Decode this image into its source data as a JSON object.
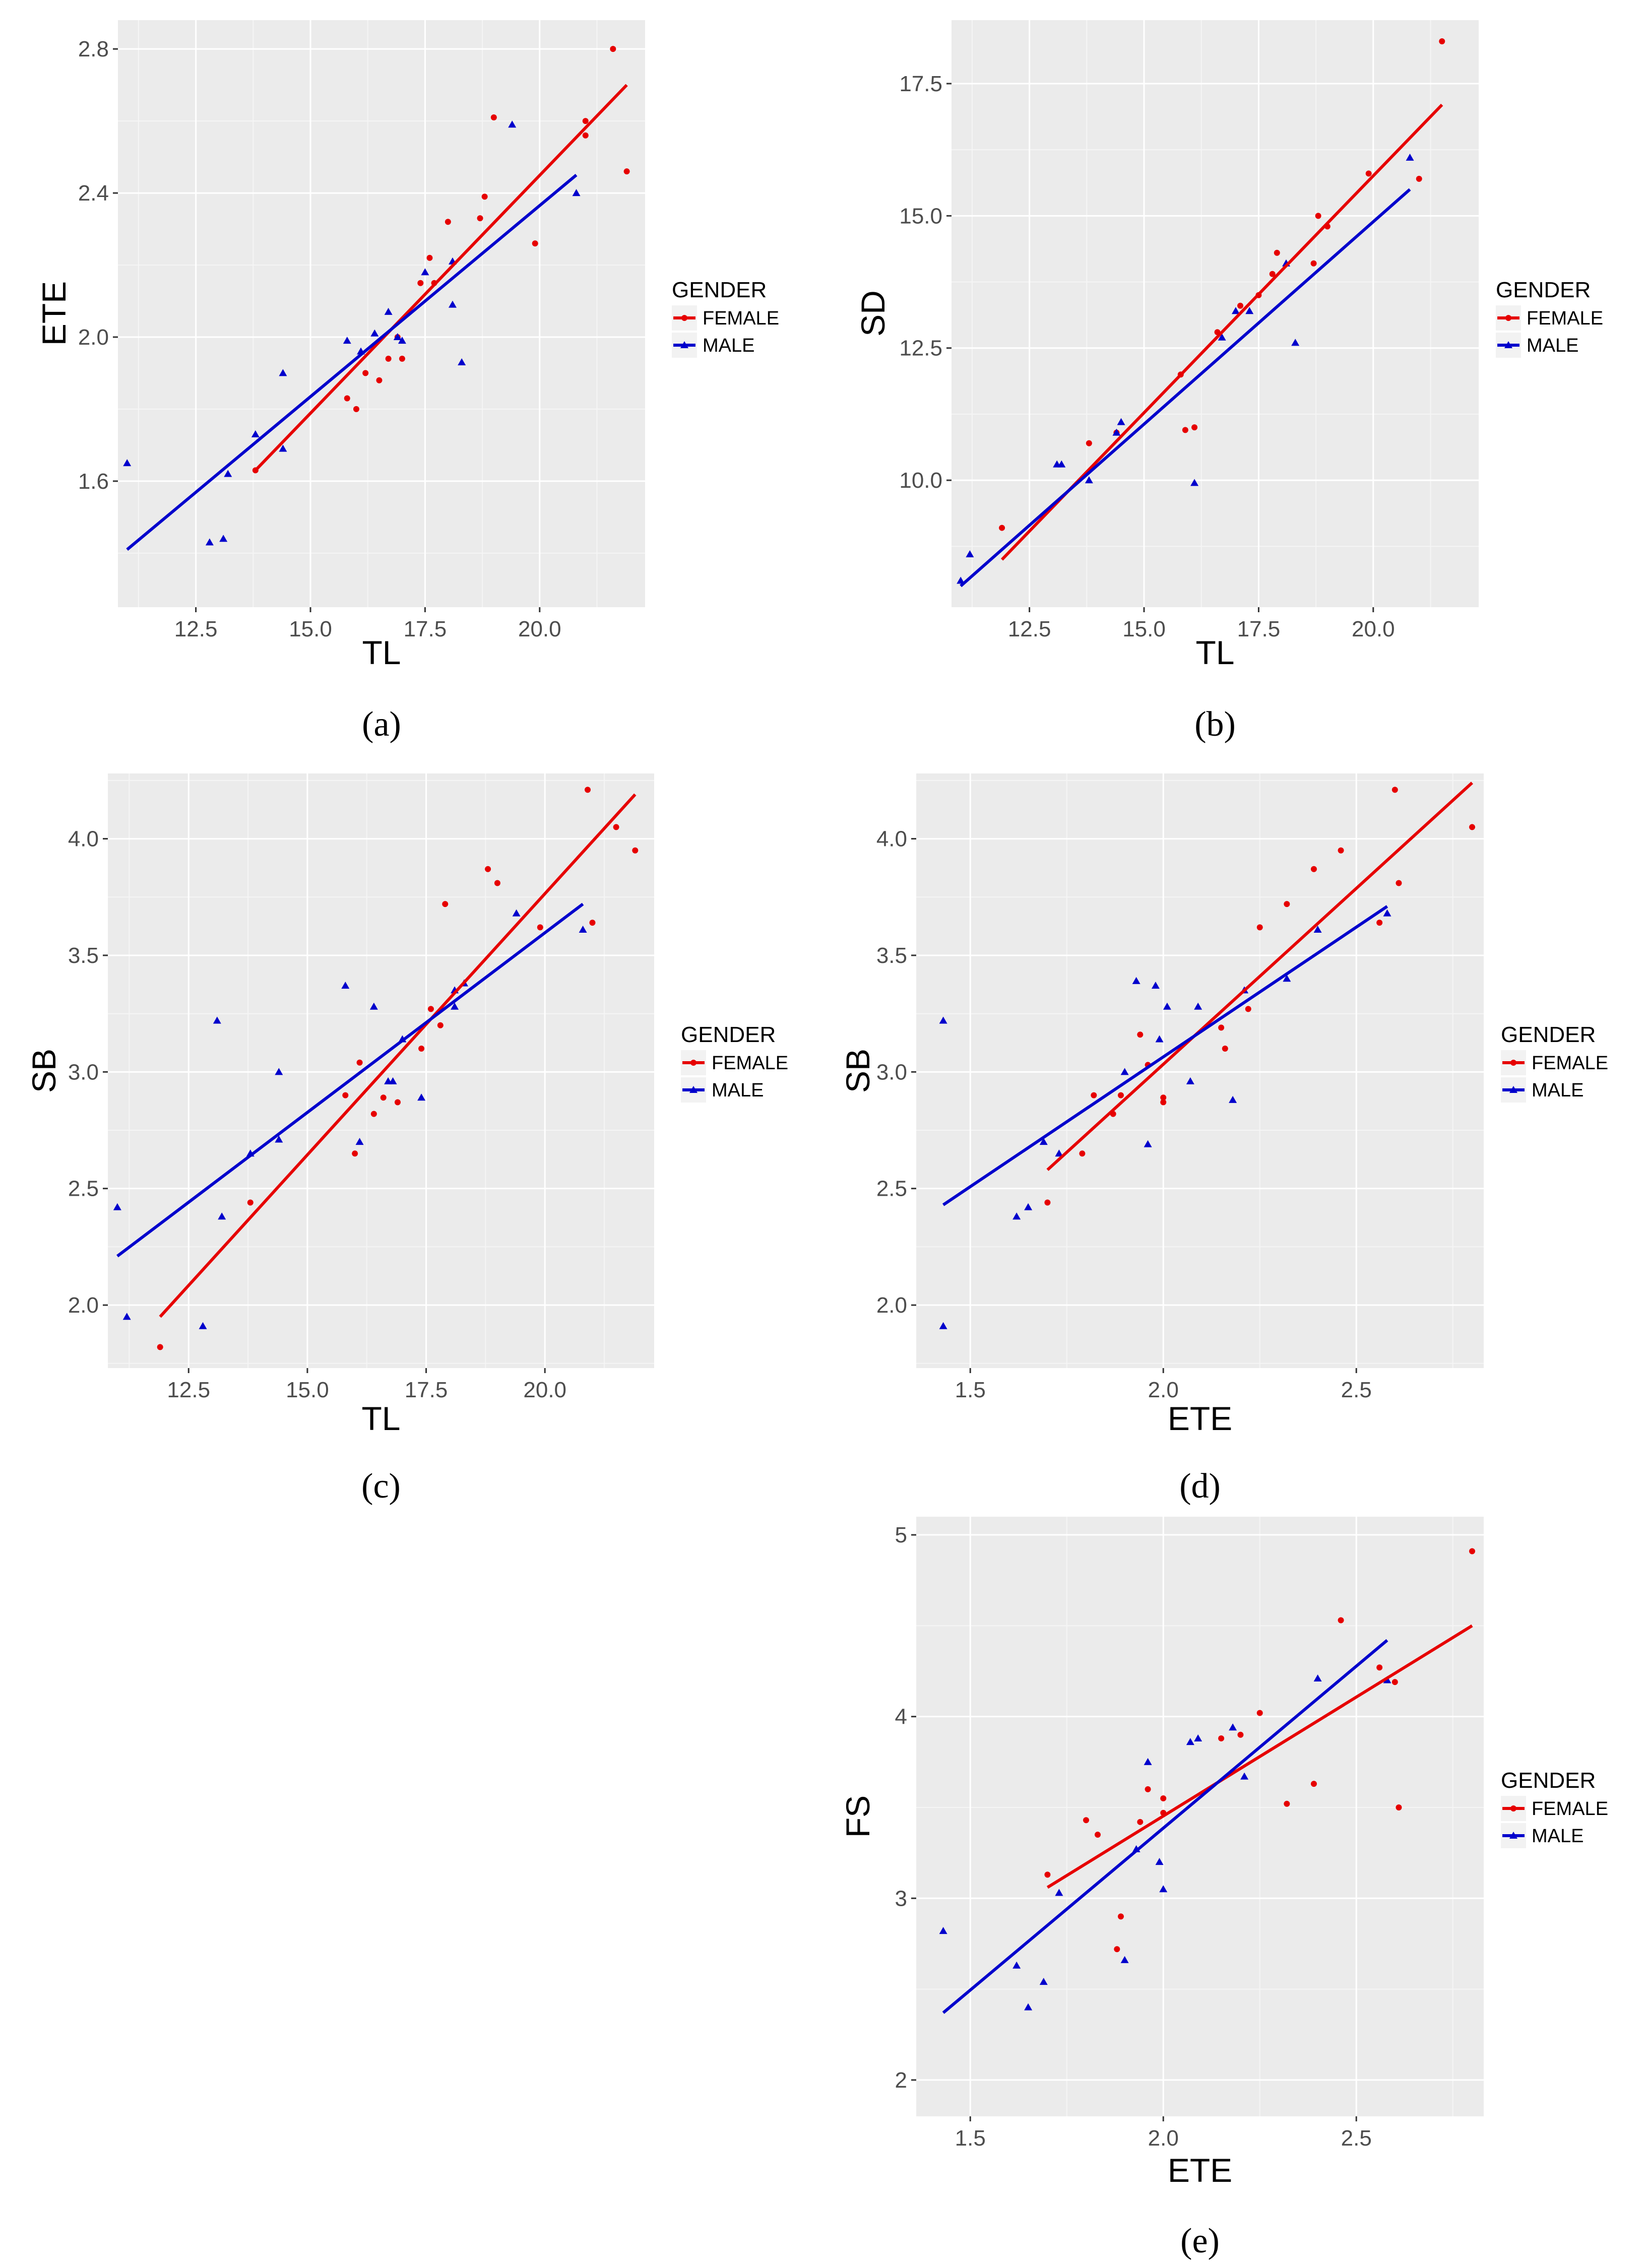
{
  "colors": {
    "female": "#e60000",
    "male": "#0000cc",
    "panel_bg": "#ebebeb",
    "grid_major": "#ffffff",
    "grid_minor": "#f5f5f5"
  },
  "legend": {
    "title": "GENDER",
    "female_label": "FEMALE",
    "male_label": "MALE"
  },
  "chart_data": [
    {
      "id": "a",
      "type": "scatter",
      "panel_label": "(a)",
      "xlabel": "TL",
      "ylabel": "ETE",
      "xlim": [
        10.8,
        22.3
      ],
      "ylim": [
        1.25,
        2.88
      ],
      "xticks": [
        12.5,
        15.0,
        17.5,
        20.0
      ],
      "xtick_labels": [
        "12.5",
        "15.0",
        "17.5",
        "20.0"
      ],
      "yticks": [
        1.6,
        2.0,
        2.4,
        2.8
      ],
      "ytick_labels": [
        "1.6",
        "2.0",
        "2.4",
        "2.8"
      ],
      "series": [
        {
          "name": "FEMALE",
          "points": [
            [
              13.8,
              1.63
            ],
            [
              15.8,
              1.83
            ],
            [
              16.0,
              1.8
            ],
            [
              16.2,
              1.9
            ],
            [
              16.5,
              1.88
            ],
            [
              16.7,
              1.94
            ],
            [
              17.0,
              1.94
            ],
            [
              16.9,
              2.0
            ],
            [
              17.4,
              2.15
            ],
            [
              17.6,
              2.22
            ],
            [
              17.7,
              2.15
            ],
            [
              18.0,
              2.32
            ],
            [
              18.7,
              2.33
            ],
            [
              18.8,
              2.39
            ],
            [
              19.0,
              2.61
            ],
            [
              19.9,
              2.26
            ],
            [
              21.0,
              2.6
            ],
            [
              21.0,
              2.56
            ],
            [
              21.6,
              2.8
            ],
            [
              21.9,
              2.46
            ]
          ],
          "fit": [
            [
              13.8,
              1.63
            ],
            [
              21.9,
              2.7
            ]
          ]
        },
        {
          "name": "MALE",
          "points": [
            [
              11.0,
              1.65
            ],
            [
              12.8,
              1.43
            ],
            [
              13.1,
              1.44
            ],
            [
              13.2,
              1.62
            ],
            [
              13.8,
              1.73
            ],
            [
              14.4,
              1.9
            ],
            [
              14.4,
              1.69
            ],
            [
              15.8,
              1.99
            ],
            [
              16.1,
              1.96
            ],
            [
              16.4,
              2.01
            ],
            [
              16.7,
              2.07
            ],
            [
              16.9,
              2.0
            ],
            [
              17.0,
              1.99
            ],
            [
              17.5,
              2.18
            ],
            [
              18.1,
              2.21
            ],
            [
              18.1,
              2.09
            ],
            [
              18.3,
              1.93
            ],
            [
              19.4,
              2.59
            ],
            [
              20.8,
              2.4
            ]
          ],
          "fit": [
            [
              11.0,
              1.41
            ],
            [
              20.8,
              2.45
            ]
          ]
        }
      ]
    },
    {
      "id": "b",
      "type": "scatter",
      "panel_label": "(b)",
      "xlabel": "TL",
      "ylabel": "SD",
      "xlim": [
        10.8,
        22.3
      ],
      "ylim": [
        7.6,
        18.7
      ],
      "xticks": [
        12.5,
        15.0,
        17.5,
        20.0
      ],
      "xtick_labels": [
        "12.5",
        "15.0",
        "17.5",
        "20.0"
      ],
      "yticks": [
        10.0,
        12.5,
        15.0,
        17.5
      ],
      "ytick_labels": [
        "10.0",
        "12.5",
        "15.0",
        "17.5"
      ],
      "series": [
        {
          "name": "FEMALE",
          "points": [
            [
              11.9,
              9.1
            ],
            [
              13.8,
              10.7
            ],
            [
              14.4,
              10.9
            ],
            [
              15.8,
              12.0
            ],
            [
              15.9,
              10.95
            ],
            [
              16.1,
              11.0
            ],
            [
              16.6,
              12.8
            ],
            [
              17.1,
              13.3
            ],
            [
              17.5,
              13.5
            ],
            [
              17.8,
              13.9
            ],
            [
              17.9,
              14.3
            ],
            [
              18.7,
              14.1
            ],
            [
              18.8,
              15.0
            ],
            [
              19.0,
              14.8
            ],
            [
              19.9,
              15.8
            ],
            [
              21.0,
              15.7
            ],
            [
              21.5,
              18.3
            ]
          ],
          "fit": [
            [
              11.9,
              8.5
            ],
            [
              21.5,
              17.1
            ]
          ]
        },
        {
          "name": "MALE",
          "points": [
            [
              11.0,
              8.1
            ],
            [
              11.2,
              8.6
            ],
            [
              13.1,
              10.3
            ],
            [
              13.2,
              10.3
            ],
            [
              13.8,
              10.0
            ],
            [
              14.4,
              10.9
            ],
            [
              14.5,
              11.1
            ],
            [
              16.1,
              9.95
            ],
            [
              16.7,
              12.7
            ],
            [
              17.0,
              13.2
            ],
            [
              17.3,
              13.2
            ],
            [
              18.1,
              14.1
            ],
            [
              18.3,
              12.6
            ],
            [
              20.8,
              16.1
            ]
          ],
          "fit": [
            [
              11.0,
              8.0
            ],
            [
              20.8,
              15.5
            ]
          ]
        }
      ]
    },
    {
      "id": "c",
      "type": "scatter",
      "panel_label": "(c)",
      "xlabel": "TL",
      "ylabel": "SB",
      "xlim": [
        10.8,
        22.3
      ],
      "ylim": [
        1.73,
        4.28
      ],
      "xticks": [
        12.5,
        15.0,
        17.5,
        20.0
      ],
      "xtick_labels": [
        "12.5",
        "15.0",
        "17.5",
        "20.0"
      ],
      "yticks": [
        2.0,
        2.5,
        3.0,
        3.5,
        4.0
      ],
      "ytick_labels": [
        "2.0",
        "2.5",
        "3.0",
        "3.5",
        "4.0"
      ],
      "series": [
        {
          "name": "FEMALE",
          "points": [
            [
              11.9,
              1.82
            ],
            [
              13.8,
              2.44
            ],
            [
              15.8,
              2.9
            ],
            [
              16.0,
              2.65
            ],
            [
              16.1,
              3.04
            ],
            [
              16.4,
              2.82
            ],
            [
              16.6,
              2.89
            ],
            [
              16.9,
              2.87
            ],
            [
              17.4,
              3.1
            ],
            [
              17.6,
              3.27
            ],
            [
              17.8,
              3.2
            ],
            [
              17.9,
              3.72
            ],
            [
              18.8,
              3.87
            ],
            [
              19.0,
              3.81
            ],
            [
              19.9,
              3.62
            ],
            [
              20.9,
              4.21
            ],
            [
              21.0,
              3.64
            ],
            [
              21.5,
              4.05
            ],
            [
              21.9,
              3.95
            ]
          ],
          "fit": [
            [
              11.9,
              1.95
            ],
            [
              21.9,
              4.19
            ]
          ]
        },
        {
          "name": "MALE",
          "points": [
            [
              11.0,
              2.42
            ],
            [
              11.2,
              1.95
            ],
            [
              12.8,
              1.91
            ],
            [
              13.1,
              3.22
            ],
            [
              13.2,
              2.38
            ],
            [
              13.8,
              2.65
            ],
            [
              14.4,
              3.0
            ],
            [
              14.4,
              2.71
            ],
            [
              15.8,
              3.37
            ],
            [
              16.1,
              2.7
            ],
            [
              16.4,
              3.28
            ],
            [
              16.7,
              2.96
            ],
            [
              16.8,
              2.96
            ],
            [
              17.0,
              3.14
            ],
            [
              17.4,
              2.89
            ],
            [
              18.1,
              3.28
            ],
            [
              18.1,
              3.35
            ],
            [
              18.3,
              3.38
            ],
            [
              19.4,
              3.68
            ],
            [
              20.8,
              3.61
            ]
          ],
          "fit": [
            [
              11.0,
              2.21
            ],
            [
              20.8,
              3.72
            ]
          ]
        }
      ]
    },
    {
      "id": "d",
      "type": "scatter",
      "panel_label": "(d)",
      "xlabel": "ETE",
      "ylabel": "SB",
      "xlim": [
        1.36,
        2.83
      ],
      "ylim": [
        1.73,
        4.28
      ],
      "xticks": [
        1.5,
        2.0,
        2.5
      ],
      "xtick_labels": [
        "1.5",
        "2.0",
        "2.5"
      ],
      "yticks": [
        2.0,
        2.5,
        3.0,
        3.5,
        4.0
      ],
      "ytick_labels": [
        "2.0",
        "2.5",
        "3.0",
        "3.5",
        "4.0"
      ],
      "series": [
        {
          "name": "FEMALE",
          "points": [
            [
              1.7,
              2.44
            ],
            [
              1.79,
              2.65
            ],
            [
              1.82,
              2.9
            ],
            [
              1.87,
              2.82
            ],
            [
              1.89,
              2.9
            ],
            [
              1.94,
              3.16
            ],
            [
              1.96,
              3.03
            ],
            [
              2.0,
              2.87
            ],
            [
              2.0,
              2.89
            ],
            [
              2.15,
              3.19
            ],
            [
              2.16,
              3.1
            ],
            [
              2.22,
              3.27
            ],
            [
              2.25,
              3.62
            ],
            [
              2.32,
              3.72
            ],
            [
              2.39,
              3.87
            ],
            [
              2.46,
              3.95
            ],
            [
              2.56,
              3.64
            ],
            [
              2.6,
              4.21
            ],
            [
              2.61,
              3.81
            ],
            [
              2.8,
              4.05
            ]
          ],
          "fit": [
            [
              1.7,
              2.58
            ],
            [
              2.8,
              4.24
            ]
          ]
        },
        {
          "name": "MALE",
          "points": [
            [
              1.43,
              3.22
            ],
            [
              1.43,
              1.91
            ],
            [
              1.62,
              2.38
            ],
            [
              1.65,
              2.42
            ],
            [
              1.69,
              2.7
            ],
            [
              1.73,
              2.65
            ],
            [
              1.9,
              3.0
            ],
            [
              1.93,
              3.39
            ],
            [
              1.96,
              2.69
            ],
            [
              1.98,
              3.37
            ],
            [
              1.99,
              3.14
            ],
            [
              2.01,
              3.28
            ],
            [
              2.07,
              2.96
            ],
            [
              2.09,
              3.28
            ],
            [
              2.18,
              2.88
            ],
            [
              2.21,
              3.35
            ],
            [
              2.32,
              3.4
            ],
            [
              2.4,
              3.61
            ],
            [
              2.58,
              3.68
            ]
          ],
          "fit": [
            [
              1.43,
              2.43
            ],
            [
              2.58,
              3.71
            ]
          ]
        }
      ]
    },
    {
      "id": "e",
      "type": "scatter",
      "panel_label": "(e)",
      "xlabel": "ETE",
      "ylabel": "FS",
      "xlim": [
        1.36,
        2.83
      ],
      "ylim": [
        1.8,
        5.1
      ],
      "xticks": [
        1.5,
        2.0,
        2.5
      ],
      "xtick_labels": [
        "1.5",
        "2.0",
        "2.5"
      ],
      "yticks": [
        2,
        3,
        4,
        5
      ],
      "ytick_labels": [
        "2",
        "3",
        "4",
        "5"
      ],
      "series": [
        {
          "name": "FEMALE",
          "points": [
            [
              1.7,
              3.13
            ],
            [
              1.8,
              3.43
            ],
            [
              1.83,
              3.35
            ],
            [
              1.88,
              2.72
            ],
            [
              1.89,
              2.9
            ],
            [
              1.94,
              3.42
            ],
            [
              1.96,
              3.6
            ],
            [
              2.0,
              3.47
            ],
            [
              2.0,
              3.55
            ],
            [
              2.15,
              3.88
            ],
            [
              2.2,
              3.9
            ],
            [
              2.25,
              4.02
            ],
            [
              2.32,
              3.52
            ],
            [
              2.39,
              3.63
            ],
            [
              2.46,
              4.53
            ],
            [
              2.56,
              4.27
            ],
            [
              2.6,
              4.19
            ],
            [
              2.61,
              3.5
            ],
            [
              2.8,
              4.91
            ]
          ],
          "fit": [
            [
              1.7,
              3.06
            ],
            [
              2.8,
              4.5
            ]
          ]
        },
        {
          "name": "MALE",
          "points": [
            [
              1.43,
              2.82
            ],
            [
              1.62,
              2.63
            ],
            [
              1.65,
              2.4
            ],
            [
              1.69,
              2.54
            ],
            [
              1.73,
              3.03
            ],
            [
              1.9,
              2.66
            ],
            [
              1.93,
              3.27
            ],
            [
              1.96,
              3.75
            ],
            [
              1.99,
              3.2
            ],
            [
              2.0,
              3.05
            ],
            [
              2.07,
              3.86
            ],
            [
              2.09,
              3.88
            ],
            [
              2.18,
              3.94
            ],
            [
              2.21,
              3.67
            ],
            [
              2.4,
              4.21
            ],
            [
              2.58,
              4.2
            ]
          ],
          "fit": [
            [
              1.43,
              2.37
            ],
            [
              2.58,
              4.42
            ]
          ]
        }
      ]
    }
  ]
}
